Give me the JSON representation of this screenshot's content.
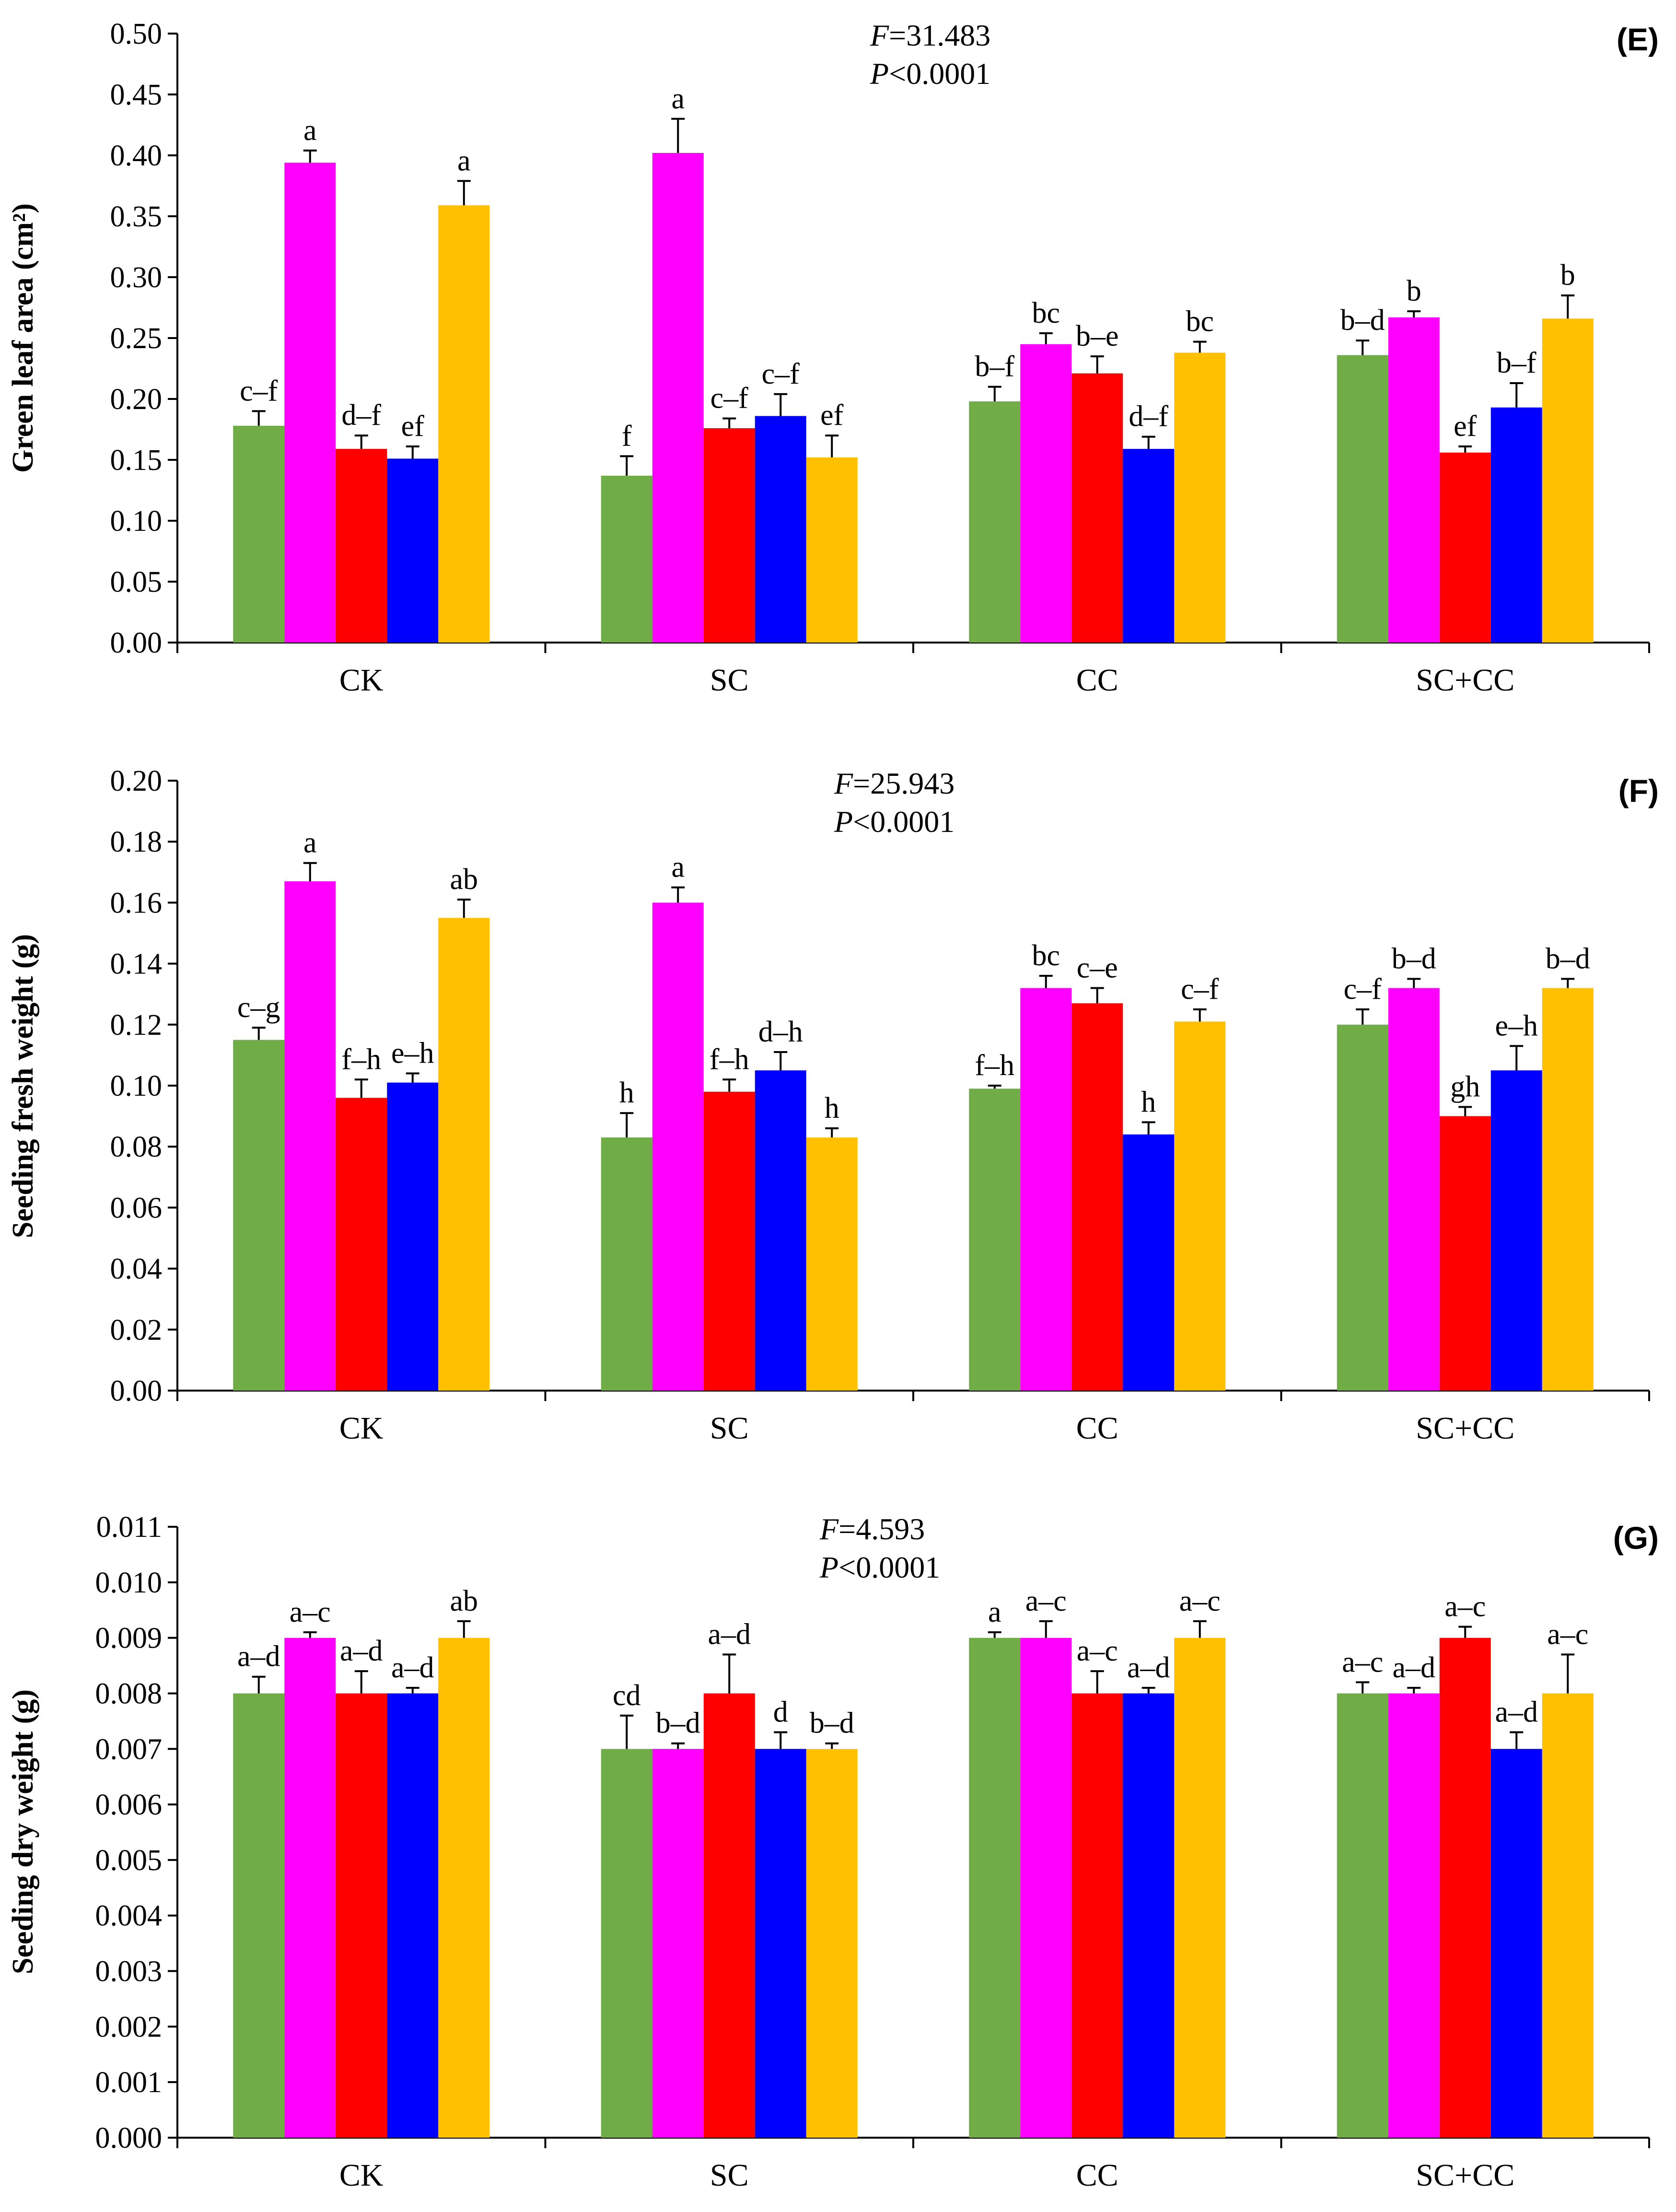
{
  "colors": {
    "series": [
      "#70AD47",
      "#FF00FF",
      "#FF0000",
      "#0000FF",
      "#FFC000"
    ]
  },
  "chart_data": [
    {
      "type": "bar",
      "panel": "(E)",
      "ylabel": "Green leaf area (cm²)",
      "ylim": [
        0,
        0.5
      ],
      "yticks": [
        "0.00",
        "0.05",
        "0.10",
        "0.15",
        "0.20",
        "0.25",
        "0.30",
        "0.35",
        "0.40",
        "0.45",
        "0.50"
      ],
      "stat_f": "=31.483",
      "stat_p": "<0.0001",
      "categories": [
        "CK",
        "SC",
        "CC",
        "SC+CC"
      ],
      "series": [
        {
          "values": [
            0.178,
            0.137,
            0.198,
            0.236
          ],
          "err_top": [
            0.19,
            0.153,
            0.21,
            0.248
          ],
          "labels": [
            "c–f",
            "f",
            "b–f",
            "b–d"
          ]
        },
        {
          "values": [
            0.394,
            0.402,
            0.245,
            0.267
          ],
          "err_top": [
            0.404,
            0.43,
            0.254,
            0.272
          ],
          "labels": [
            "a",
            "a",
            "bc",
            "b"
          ]
        },
        {
          "values": [
            0.159,
            0.176,
            0.221,
            0.156
          ],
          "err_top": [
            0.17,
            0.184,
            0.235,
            0.161
          ],
          "labels": [
            "d–f",
            "c–f",
            "b–e",
            "ef"
          ]
        },
        {
          "values": [
            0.151,
            0.186,
            0.159,
            0.193
          ],
          "err_top": [
            0.161,
            0.204,
            0.169,
            0.213
          ],
          "labels": [
            "ef",
            "c–f",
            "d–f",
            "b–f"
          ]
        },
        {
          "values": [
            0.359,
            0.152,
            0.238,
            0.266
          ],
          "err_top": [
            0.379,
            0.17,
            0.247,
            0.285
          ],
          "labels": [
            "a",
            "ef",
            "bc",
            "b"
          ]
        }
      ]
    },
    {
      "type": "bar",
      "panel": "(F)",
      "ylabel": "Seeding fresh weight (g)",
      "ylim": [
        0,
        0.2
      ],
      "yticks": [
        "0.00",
        "0.02",
        "0.04",
        "0.06",
        "0.08",
        "0.10",
        "0.12",
        "0.14",
        "0.16",
        "0.18",
        "0.20"
      ],
      "stat_f": "=25.943",
      "stat_p": "<0.0001",
      "categories": [
        "CK",
        "SC",
        "CC",
        "SC+CC"
      ],
      "series": [
        {
          "values": [
            0.115,
            0.083,
            0.099,
            0.12
          ],
          "err_top": [
            0.119,
            0.091,
            0.1,
            0.125
          ],
          "labels": [
            "c–g",
            "h",
            "f–h",
            "c–f"
          ]
        },
        {
          "values": [
            0.167,
            0.16,
            0.132,
            0.132
          ],
          "err_top": [
            0.173,
            0.165,
            0.136,
            0.135
          ],
          "labels": [
            "a",
            "a",
            "bc",
            "b–d"
          ]
        },
        {
          "values": [
            0.096,
            0.098,
            0.127,
            0.09
          ],
          "err_top": [
            0.102,
            0.102,
            0.132,
            0.093
          ],
          "labels": [
            "f–h",
            "f–h",
            "c–e",
            "gh"
          ]
        },
        {
          "values": [
            0.101,
            0.105,
            0.084,
            0.105
          ],
          "err_top": [
            0.104,
            0.111,
            0.088,
            0.113
          ],
          "labels": [
            "e–h",
            "d–h",
            "h",
            "e–h"
          ]
        },
        {
          "values": [
            0.155,
            0.083,
            0.121,
            0.132
          ],
          "err_top": [
            0.161,
            0.086,
            0.125,
            0.135
          ],
          "labels": [
            "ab",
            "h",
            "c–f",
            "b–d"
          ]
        }
      ]
    },
    {
      "type": "bar",
      "panel": "(G)",
      "ylabel": "Seeding dry weight (g)",
      "ylim": [
        0,
        0.011
      ],
      "yticks": [
        "0.000",
        "0.001",
        "0.002",
        "0.003",
        "0.004",
        "0.005",
        "0.006",
        "0.007",
        "0.008",
        "0.009",
        "0.010",
        "0.011"
      ],
      "stat_f": "=4.593",
      "stat_p": "<0.0001",
      "categories": [
        "CK",
        "SC",
        "CC",
        "SC+CC"
      ],
      "series": [
        {
          "values": [
            0.008,
            0.007,
            0.009,
            0.008
          ],
          "err_top": [
            0.0083,
            0.0076,
            0.0091,
            0.0082
          ],
          "labels": [
            "a–d",
            "cd",
            "a",
            "a–c"
          ]
        },
        {
          "values": [
            0.009,
            0.007,
            0.009,
            0.008
          ],
          "err_top": [
            0.0091,
            0.0071,
            0.0093,
            0.0081
          ],
          "labels": [
            "a–c",
            "b–d",
            "a–c",
            "a–d"
          ]
        },
        {
          "values": [
            0.008,
            0.008,
            0.008,
            0.009
          ],
          "err_top": [
            0.0084,
            0.0087,
            0.0084,
            0.0092
          ],
          "labels": [
            "a–d",
            "a–d",
            "a–c",
            "a–c"
          ]
        },
        {
          "values": [
            0.008,
            0.007,
            0.008,
            0.007
          ],
          "err_top": [
            0.0081,
            0.0073,
            0.0081,
            0.0073
          ],
          "labels": [
            "a–d",
            "d",
            "a–d",
            "a–d"
          ]
        },
        {
          "values": [
            0.009,
            0.007,
            0.009,
            0.008
          ],
          "err_top": [
            0.0093,
            0.0071,
            0.0093,
            0.0087
          ],
          "labels": [
            "ab",
            "b–d",
            "a–c",
            "a–c"
          ]
        }
      ]
    }
  ]
}
